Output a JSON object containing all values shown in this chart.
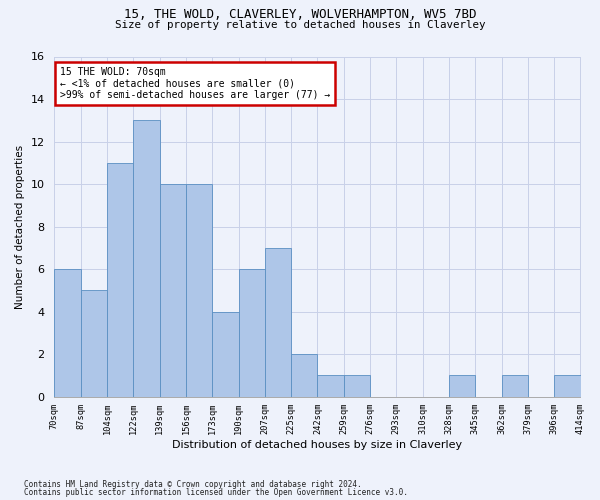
{
  "title_line1": "15, THE WOLD, CLAVERLEY, WOLVERHAMPTON, WV5 7BD",
  "title_line2": "Size of property relative to detached houses in Claverley",
  "xlabel": "Distribution of detached houses by size in Claverley",
  "ylabel": "Number of detached properties",
  "bar_values": [
    6,
    5,
    11,
    13,
    10,
    10,
    4,
    6,
    7,
    2,
    1,
    1,
    0,
    0,
    0,
    1,
    0,
    1,
    0,
    1
  ],
  "bin_labels": [
    "70sqm",
    "87sqm",
    "104sqm",
    "122sqm",
    "139sqm",
    "156sqm",
    "173sqm",
    "190sqm",
    "207sqm",
    "225sqm",
    "242sqm",
    "259sqm",
    "276sqm",
    "293sqm",
    "310sqm",
    "328sqm",
    "345sqm",
    "362sqm",
    "379sqm",
    "396sqm",
    "414sqm"
  ],
  "bar_color": "#aec6e8",
  "bar_edge_color": "#5a8fc2",
  "annotation_title": "15 THE WOLD: 70sqm",
  "annotation_line1": "← <1% of detached houses are smaller (0)",
  "annotation_line2": ">99% of semi-detached houses are larger (77) →",
  "annotation_box_color": "#ffffff",
  "annotation_box_edge": "#cc0000",
  "ylim": [
    0,
    16
  ],
  "yticks": [
    0,
    2,
    4,
    6,
    8,
    10,
    12,
    14,
    16
  ],
  "footnote1": "Contains HM Land Registry data © Crown copyright and database right 2024.",
  "footnote2": "Contains public sector information licensed under the Open Government Licence v3.0.",
  "bg_color": "#eef2fb",
  "grid_color": "#c8d0e8"
}
